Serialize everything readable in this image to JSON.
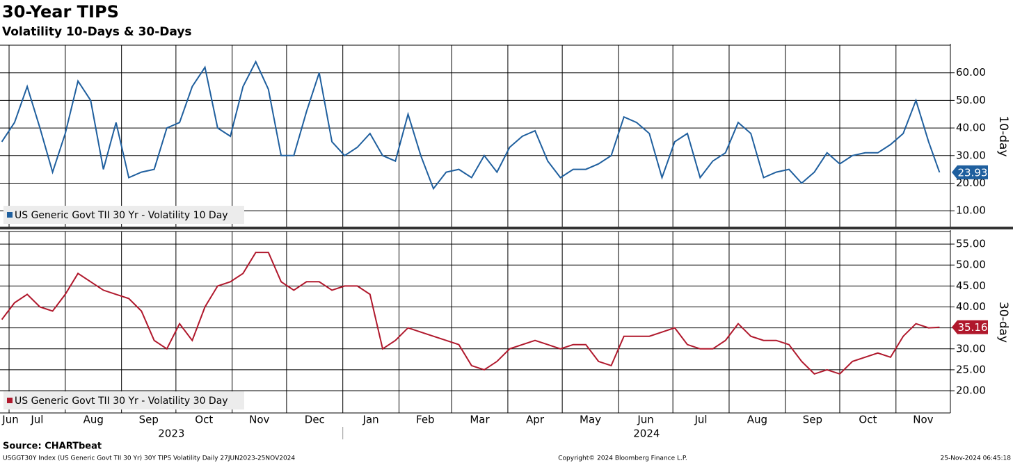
{
  "chart_data": {
    "type": "line",
    "title": "30-Year TIPS",
    "subtitle": "Volatility 10-Days & 30-Days",
    "source": "Source: CHARTbeat",
    "footer_left": "USGGT30Y Index (US Generic Govt TII 30 Yr) 30Y TIPS Volatility  Daily 27JUN2023-25NOV2024",
    "footer_center": "Copyright© 2024 Bloomberg Finance L.P.",
    "footer_right": "25-Nov-2024 06:45:18",
    "grid": true,
    "xlim": [
      "2023-06-26",
      "2024-12-01"
    ],
    "xticks": [
      {
        "value": "2023-06-01",
        "label": "Jun"
      },
      {
        "value": "2023-07-01",
        "label": "Jul"
      },
      {
        "value": "2023-08-01",
        "label": "Aug"
      },
      {
        "value": "2023-09-01",
        "label": "Sep"
      },
      {
        "value": "2023-10-01",
        "label": "Oct"
      },
      {
        "value": "2023-11-01",
        "label": "Nov"
      },
      {
        "value": "2023-12-01",
        "label": "Dec"
      },
      {
        "value": "2024-01-01",
        "label": "Jan"
      },
      {
        "value": "2024-02-01",
        "label": "Feb"
      },
      {
        "value": "2024-03-01",
        "label": "Mar"
      },
      {
        "value": "2024-04-01",
        "label": "Apr"
      },
      {
        "value": "2024-05-01",
        "label": "May"
      },
      {
        "value": "2024-06-01",
        "label": "Jun"
      },
      {
        "value": "2024-07-01",
        "label": "Jul"
      },
      {
        "value": "2024-08-01",
        "label": "Aug"
      },
      {
        "value": "2024-09-01",
        "label": "Sep"
      },
      {
        "value": "2024-10-01",
        "label": "Oct"
      },
      {
        "value": "2024-11-01",
        "label": "Nov"
      }
    ],
    "years": [
      "2023",
      "2024"
    ],
    "x": [
      "2023-06-27",
      "2023-07-04",
      "2023-07-11",
      "2023-07-18",
      "2023-07-25",
      "2023-08-01",
      "2023-08-08",
      "2023-08-15",
      "2023-08-22",
      "2023-08-29",
      "2023-09-05",
      "2023-09-12",
      "2023-09-19",
      "2023-09-26",
      "2023-10-03",
      "2023-10-10",
      "2023-10-17",
      "2023-10-24",
      "2023-10-31",
      "2023-11-07",
      "2023-11-14",
      "2023-11-21",
      "2023-11-28",
      "2023-12-05",
      "2023-12-12",
      "2023-12-19",
      "2023-12-26",
      "2024-01-02",
      "2024-01-09",
      "2024-01-16",
      "2024-01-23",
      "2024-01-30",
      "2024-02-06",
      "2024-02-13",
      "2024-02-20",
      "2024-02-27",
      "2024-03-05",
      "2024-03-12",
      "2024-03-19",
      "2024-03-26",
      "2024-04-02",
      "2024-04-09",
      "2024-04-16",
      "2024-04-23",
      "2024-04-30",
      "2024-05-07",
      "2024-05-14",
      "2024-05-21",
      "2024-05-28",
      "2024-06-04",
      "2024-06-11",
      "2024-06-18",
      "2024-06-25",
      "2024-07-02",
      "2024-07-09",
      "2024-07-16",
      "2024-07-23",
      "2024-07-30",
      "2024-08-06",
      "2024-08-13",
      "2024-08-20",
      "2024-08-27",
      "2024-09-03",
      "2024-09-10",
      "2024-09-17",
      "2024-09-24",
      "2024-10-01",
      "2024-10-08",
      "2024-10-15",
      "2024-10-22",
      "2024-10-29",
      "2024-11-05",
      "2024-11-12",
      "2024-11-19",
      "2024-11-25"
    ],
    "panels": [
      {
        "name": "US Generic Govt TII 30 Yr - Volatility 10 Day",
        "axis_label": "10-day",
        "color": "#1f5f9e",
        "ylim": [
          4,
          70
        ],
        "yticks": [
          {
            "value": 10,
            "label": "10.00"
          },
          {
            "value": 20,
            "label": "20.00"
          },
          {
            "value": 30,
            "label": "30.00"
          },
          {
            "value": 40,
            "label": "40.00"
          },
          {
            "value": 50,
            "label": "50.00"
          },
          {
            "value": 60,
            "label": "60.00"
          }
        ],
        "values": [
          35,
          42,
          55,
          40,
          24,
          38,
          57,
          50,
          25,
          42,
          22,
          24,
          25,
          40,
          42,
          55,
          62,
          40,
          37,
          55,
          64,
          54,
          30,
          30,
          46,
          60,
          35,
          30,
          33,
          38,
          30,
          28,
          45,
          30,
          18,
          24,
          25,
          22,
          30,
          24,
          33,
          37,
          39,
          28,
          22,
          25,
          25,
          27,
          30,
          44,
          42,
          38,
          22,
          35,
          38,
          22,
          28,
          31,
          42,
          38,
          22,
          24,
          25,
          20,
          24,
          31,
          27,
          30,
          31,
          31,
          34,
          38,
          50,
          35,
          23.93
        ]
      },
      {
        "name": "US Generic Govt TII 30 Yr - Volatility 30 Day",
        "axis_label": "30-day",
        "color": "#b0182c",
        "ylim": [
          14.7,
          58
        ],
        "yticks": [
          {
            "value": 20,
            "label": "20.00"
          },
          {
            "value": 25,
            "label": "25.00"
          },
          {
            "value": 30,
            "label": "30.00"
          },
          {
            "value": 35,
            "label": "35.00"
          },
          {
            "value": 40,
            "label": "40.00"
          },
          {
            "value": 45,
            "label": "45.00"
          },
          {
            "value": 50,
            "label": "50.00"
          },
          {
            "value": 55,
            "label": "55.00"
          }
        ],
        "values": [
          37,
          41,
          43,
          40,
          39,
          43,
          48,
          46,
          44,
          43,
          42,
          39,
          32,
          30,
          36,
          32,
          40,
          45,
          46,
          48,
          53,
          53,
          46,
          44,
          46,
          46,
          44,
          45,
          45,
          43,
          30,
          32,
          35,
          34,
          33,
          32,
          31,
          26,
          25,
          27,
          30,
          31,
          32,
          31,
          30,
          31,
          31,
          27,
          26,
          33,
          33,
          33,
          34,
          35,
          31,
          30,
          30,
          32,
          36,
          33,
          32,
          32,
          31,
          27,
          24,
          25,
          24,
          27,
          28,
          29,
          28,
          33,
          36,
          35,
          35.16
        ]
      }
    ]
  }
}
